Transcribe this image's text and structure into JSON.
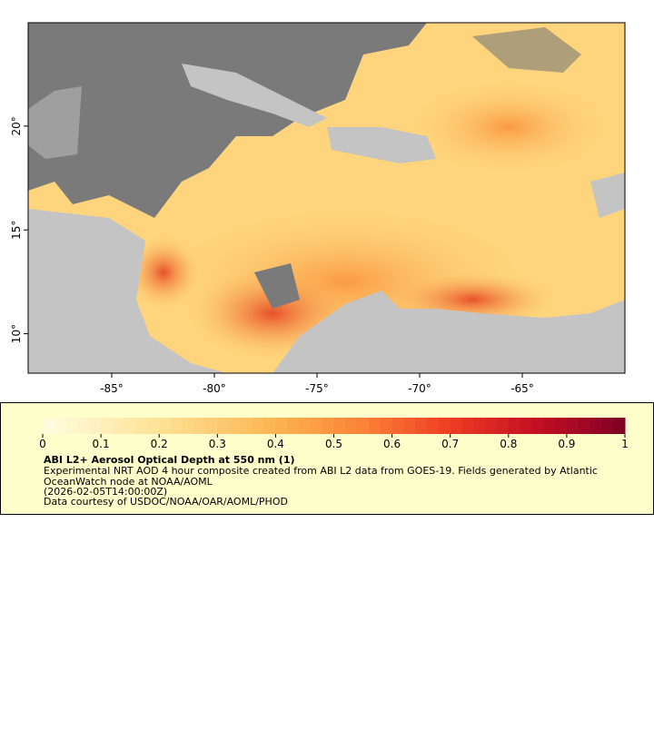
{
  "map": {
    "xlim": [
      -89.07,
      -60.0
    ],
    "ylim": [
      8.1,
      24.98
    ],
    "xticks": [
      {
        "value": -85,
        "label": "-85°"
      },
      {
        "value": -80,
        "label": "-80°"
      },
      {
        "value": -75,
        "label": "-75°"
      },
      {
        "value": -70,
        "label": "-70°"
      },
      {
        "value": -65,
        "label": "-65°"
      }
    ],
    "yticks": [
      {
        "value": 10,
        "label": "10°"
      },
      {
        "value": 15,
        "label": "15°"
      },
      {
        "value": 20,
        "label": "20°"
      }
    ]
  },
  "colorbar": {
    "range": [
      0,
      1
    ],
    "ticks": [
      0,
      0.1,
      0.2,
      0.3,
      0.4,
      0.5,
      0.6,
      0.7,
      0.8,
      0.9,
      1
    ]
  },
  "legend": {
    "title": "ABI L2+ Aerosol Optical Depth at 550 nm (1)",
    "lines": [
      "Experimental NRT AOD 4 hour composite created from ABI L2 data from GOES-19. Fields generated by Atlantic",
      "OceanWatch node at NOAA/AOML",
      "(2026-02-05T14:00:00Z)",
      "Data courtesy of USDOC/NOAA/OAR/AOML/PHOD"
    ]
  }
}
